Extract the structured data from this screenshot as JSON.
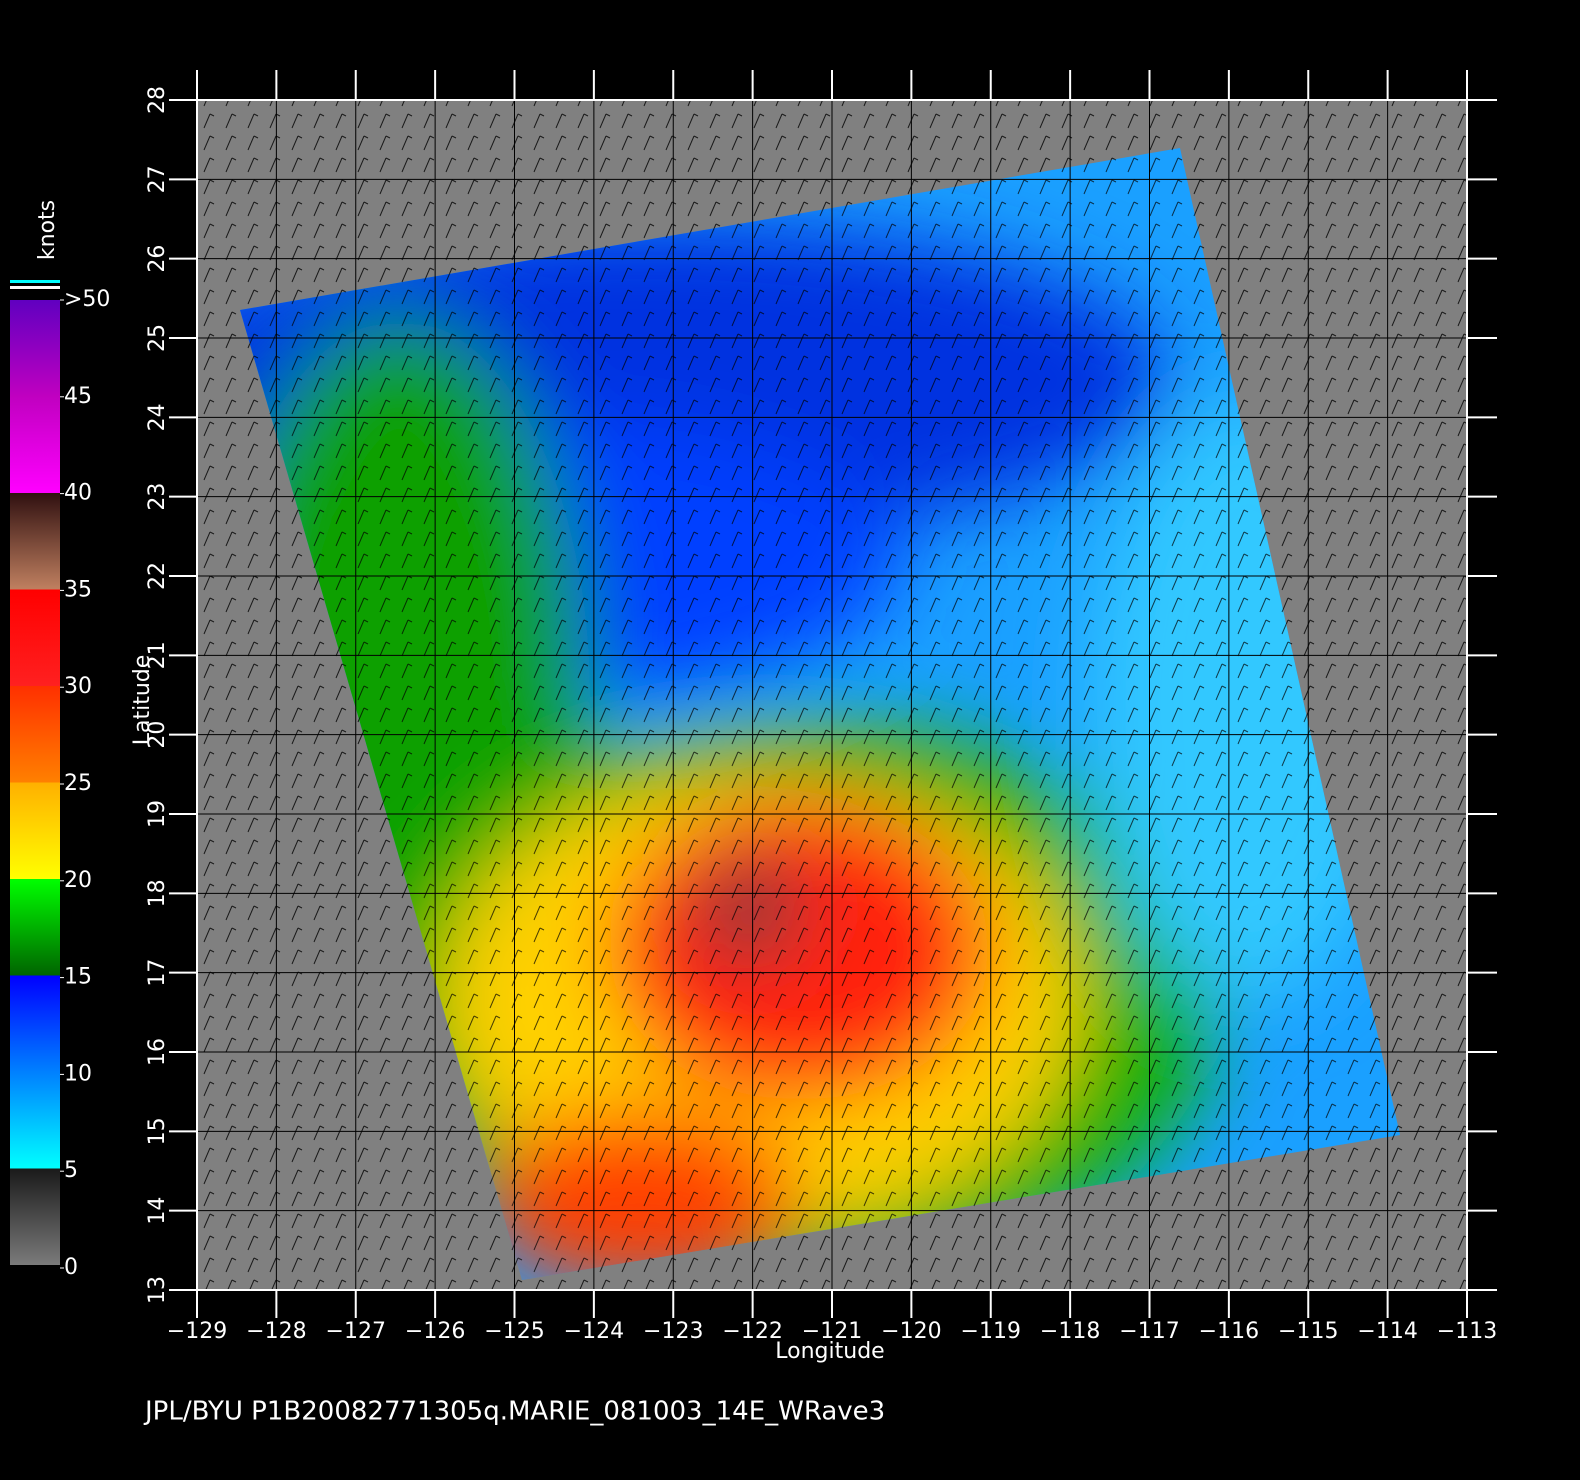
{
  "map": {
    "xlabel": "Longitude",
    "ylabel": "Latitude",
    "xlim": [
      -129,
      -113
    ],
    "ylim": [
      13,
      28
    ],
    "xticks": [
      {
        "value": -129,
        "label": "−129"
      },
      {
        "value": -128,
        "label": "−128"
      },
      {
        "value": -127,
        "label": "−127"
      },
      {
        "value": -126,
        "label": "−126"
      },
      {
        "value": -125,
        "label": "−125"
      },
      {
        "value": -124,
        "label": "−124"
      },
      {
        "value": -123,
        "label": "−123"
      },
      {
        "value": -122,
        "label": "−122"
      },
      {
        "value": -121,
        "label": "−121"
      },
      {
        "value": -120,
        "label": "−120"
      },
      {
        "value": -119,
        "label": "−119"
      },
      {
        "value": -118,
        "label": "−118"
      },
      {
        "value": -117,
        "label": "−117"
      },
      {
        "value": -116,
        "label": "−116"
      },
      {
        "value": -115,
        "label": "−115"
      },
      {
        "value": -114,
        "label": "−114"
      },
      {
        "value": -113,
        "label": "−113"
      }
    ],
    "yticks": [
      13,
      14,
      15,
      16,
      17,
      18,
      19,
      20,
      21,
      22,
      23,
      24,
      25,
      26,
      27,
      28
    ]
  },
  "colorbar": {
    "title": "knots",
    "range": [
      0,
      50
    ],
    "ticks": [
      0,
      5,
      10,
      15,
      20,
      25,
      30,
      35,
      40,
      45,
      {
        "value": 50,
        "label": ">50"
      }
    ]
  },
  "footer": "JPL/BYU  P1B20082771305q.MARIE_081003_14E_WRave3"
}
